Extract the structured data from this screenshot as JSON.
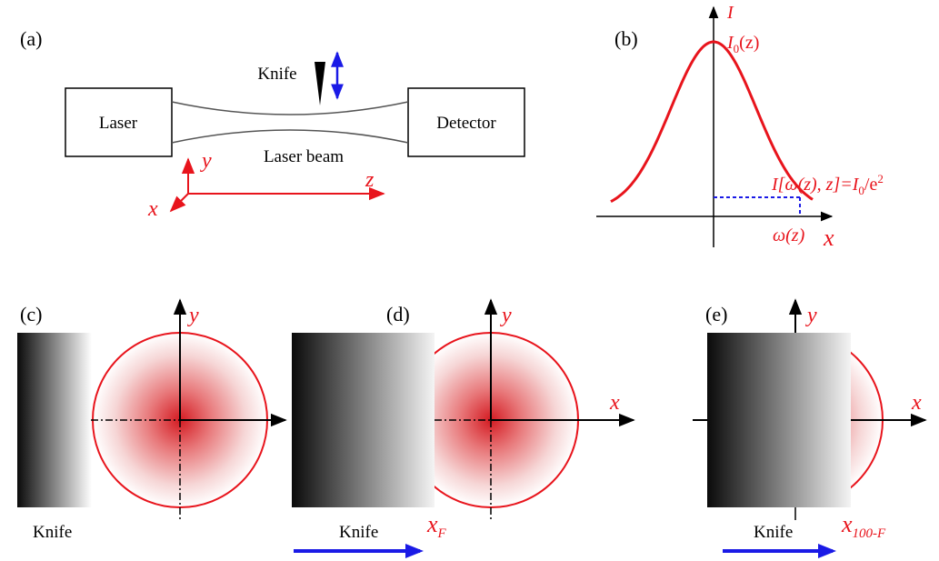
{
  "colors": {
    "beam_red": "#e8141c",
    "arrow_blue": "#1a1ae6",
    "outline": "#000000",
    "beam_line": "#555555"
  },
  "panel_a": {
    "tag": "(a)",
    "laser_label": "Laser",
    "detector_label": "Detector",
    "knife_label": "Knife",
    "beam_label": "Laser beam",
    "axis_y": "y",
    "axis_z": "z",
    "axis_x": "x"
  },
  "panel_b": {
    "tag": "(b)",
    "axis_i": "I",
    "peak_base": "I",
    "peak_sub": "0",
    "peak_tail": "(z)",
    "cond_a": "I[",
    "cond_b": "ω(z), z]=I",
    "cond_sub": "0",
    "cond_c": "/e",
    "cond_sup": "2",
    "width_label": "ω(z)",
    "axis_x": "x"
  },
  "panel_c": {
    "tag": "(c)",
    "axis_y": "y",
    "knife_label": "Knife"
  },
  "panel_d": {
    "tag": "(d)",
    "axis_y": "y",
    "axis_x": "x",
    "knife_label": "Knife",
    "pos_base": "x",
    "pos_sub": "F"
  },
  "panel_e": {
    "tag": "(e)",
    "axis_y": "y",
    "axis_x": "x",
    "knife_label": "Knife",
    "pos_base": "x",
    "pos_sub": "100-F"
  }
}
